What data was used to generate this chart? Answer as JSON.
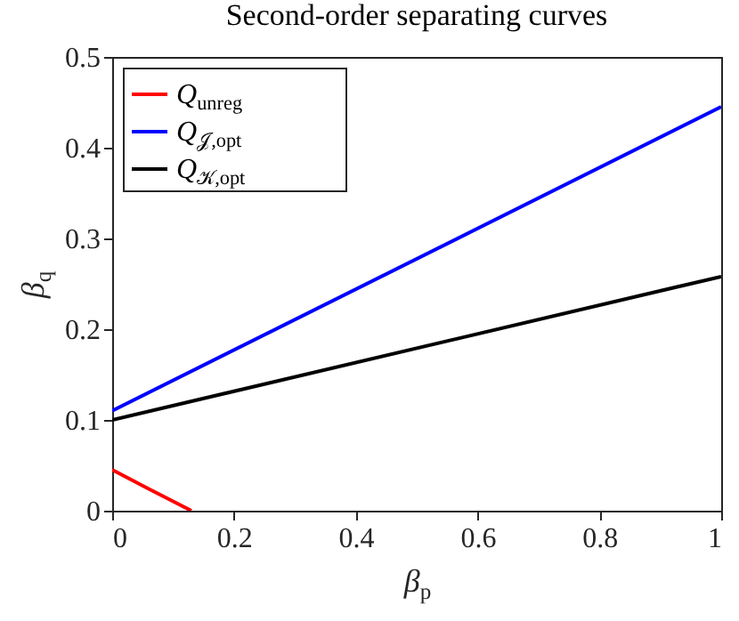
{
  "chart_data": {
    "type": "line",
    "title": "Second-order separating curves",
    "xlabel": "β$_{p}$",
    "ylabel": "β$_{q}$",
    "xlim": [
      0,
      1
    ],
    "ylim": [
      0,
      0.5
    ],
    "xticks": [
      0,
      0.2,
      0.4,
      0.6,
      0.8,
      1
    ],
    "yticks": [
      0,
      0.1,
      0.2,
      0.3,
      0.4,
      0.5
    ],
    "grid": false,
    "legend": "top left",
    "marker": "none",
    "line_style": "solid",
    "series": [
      {
        "name": "Q$_{unreg}$",
        "color": "#ff0000",
        "x": [
          0,
          0.06,
          0.13
        ],
        "values": [
          0.045,
          0.024,
          0
        ]
      },
      {
        "name": "Q$_{𝒥,opt}$",
        "color": "#0000ff",
        "x": [
          0,
          1
        ],
        "values": [
          0.11,
          0.445
        ]
      },
      {
        "name": "Q$_{𝒦,opt}$",
        "color": "#000000",
        "x": [
          0,
          1
        ],
        "values": [
          0.1,
          0.258
        ]
      }
    ]
  }
}
